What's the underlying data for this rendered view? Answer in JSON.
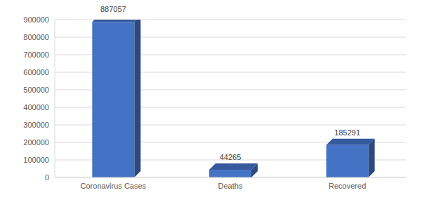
{
  "chart_data": {
    "type": "bar",
    "categories": [
      "Coronavirus Cases",
      "Deaths",
      "Recovered"
    ],
    "values": [
      887057,
      44265,
      185291
    ],
    "color": "#4472c4",
    "ylim": [
      0,
      900000
    ],
    "yticks": [
      0,
      100000,
      200000,
      300000,
      400000,
      500000,
      600000,
      700000,
      800000,
      900000
    ],
    "grid": true,
    "data_labels": true
  }
}
